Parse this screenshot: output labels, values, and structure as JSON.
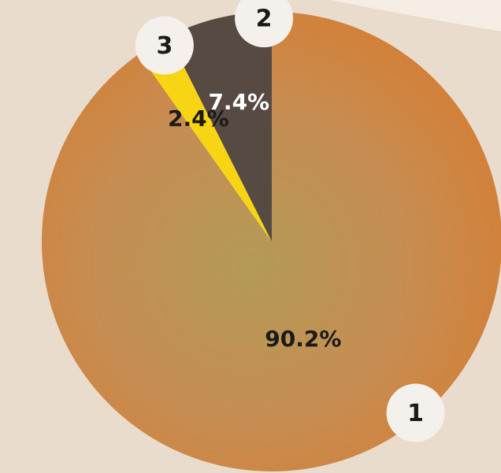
{
  "chart_data": {
    "type": "pie",
    "categories": [
      "1",
      "3",
      "2"
    ],
    "values": [
      90.2,
      2.4,
      7.4
    ],
    "value_labels": [
      "90.2%",
      "2.4%",
      "7.4%"
    ],
    "colors": [
      "#c98c4c",
      "#f8d514",
      "#574a43"
    ]
  }
}
